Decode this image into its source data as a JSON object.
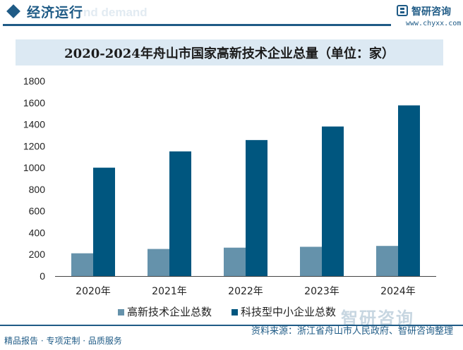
{
  "header": {
    "section_title": "经济运行",
    "ghost_text": "nd demand",
    "logo_text": "智研咨询",
    "logo_url": "www.chyxx.com"
  },
  "chart_data": {
    "type": "bar",
    "title": "2020-2024年舟山市国家高新技术企业总量（单位：家）",
    "categories": [
      "2020年",
      "2021年",
      "2022年",
      "2023年",
      "2024年"
    ],
    "series": [
      {
        "name": "高新技术企业总数",
        "values": [
          210,
          250,
          262,
          270,
          278
        ],
        "color": "#6592ab"
      },
      {
        "name": "科技型中小企业总数",
        "values": [
          1000,
          1150,
          1255,
          1380,
          1575
        ],
        "color": "#00567f"
      }
    ],
    "ylim": [
      0,
      1800
    ],
    "yticks": [
      0,
      200,
      400,
      600,
      800,
      1000,
      1200,
      1400,
      1600,
      1800
    ],
    "grid": false,
    "legend_position": "bottom"
  },
  "footer": {
    "left": "精品报告 · 专项定制 · 品质服务",
    "right": "资料来源：浙江省舟山市人民政府、智研咨询整理",
    "watermark": "智研咨询"
  }
}
